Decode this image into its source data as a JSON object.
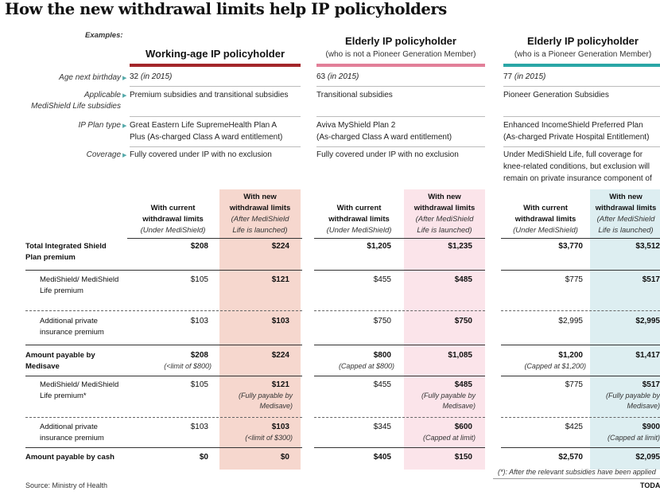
{
  "title": "How the new withdrawal limits help IP policyholders",
  "examples_label": "Examples:",
  "colors": {
    "group1": "#a3262a",
    "group2": "#e27f98",
    "group3": "#2aa6a6",
    "shade1": "#f6d7ce",
    "shade2": "#fbe4ea",
    "shade3": "#ddeef1"
  },
  "groups": [
    {
      "title": "Working-age IP policyholder",
      "subtitle": "",
      "age": "32",
      "age_note": "(in 2015)",
      "subsidies": "Premium subsidies and transitional subsidies",
      "plan": [
        "Great Eastern Life SupremeHealth Plan A",
        "Plus (As-charged Class A ward entitlement)"
      ],
      "coverage": [
        "Fully covered under IP with no exclusion"
      ]
    },
    {
      "title": "Elderly IP policyholder",
      "subtitle": "(who is not a Pioneer Generation Member)",
      "age": "63",
      "age_note": "(in 2015)",
      "subsidies": "Transitional subsidies",
      "plan": [
        "Aviva MyShield Plan 2",
        "(As-charged Class A ward entitlement)"
      ],
      "coverage": [
        "Fully covered under IP with no exclusion"
      ]
    },
    {
      "title": "Elderly IP policyholder",
      "subtitle": "(who is a Pioneer Generation Member)",
      "age": "77",
      "age_note": "(in 2015)",
      "subsidies": "Pioneer Generation Subsidies",
      "plan": [
        "Enhanced IncomeShield Preferred Plan",
        "(As-charged Private Hospital Entitlement)"
      ],
      "coverage": [
        "Under MediShield Life, full coverage for",
        "knee-related conditions, but exclusion will",
        "remain on private insurance component of"
      ]
    }
  ],
  "info_labels": {
    "age": "Age next birthday",
    "subsidies": [
      "Applicable",
      "MediShield Life subsidies"
    ],
    "plan": "IP Plan type",
    "coverage": "Coverage"
  },
  "col_headers": {
    "current": {
      "l1": "With current",
      "l2": "withdrawal limits",
      "l3": "(Under MediShield)"
    },
    "new": {
      "l1": "With new",
      "l2": "withdrawal limits",
      "l3": "(After MediShield",
      "l4": "Life is launched)"
    }
  },
  "rows": [
    {
      "label": "Total Integrated Shield Plan premium",
      "bold": true,
      "cells": [
        [
          "$208",
          ""
        ],
        [
          "$224",
          ""
        ],
        [
          "$1,205",
          ""
        ],
        [
          "$1,235",
          ""
        ],
        [
          "$3,770",
          ""
        ],
        [
          "$3,512",
          ""
        ]
      ]
    },
    {
      "label": "MediShield/ MediShield Life premium",
      "bold": false,
      "cells": [
        [
          "$105",
          ""
        ],
        [
          "$121",
          ""
        ],
        [
          "$455",
          ""
        ],
        [
          "$485",
          ""
        ],
        [
          "$775",
          ""
        ],
        [
          "$517",
          ""
        ]
      ]
    },
    {
      "label": "Additional private insurance premium",
      "bold": false,
      "cells": [
        [
          "$103",
          ""
        ],
        [
          "$103",
          ""
        ],
        [
          "$750",
          ""
        ],
        [
          "$750",
          ""
        ],
        [
          "$2,995",
          ""
        ],
        [
          "$2,995",
          ""
        ]
      ]
    },
    {
      "label": "Amount payable by Medisave",
      "bold": true,
      "cells": [
        [
          "$208",
          "(<limit of $800)"
        ],
        [
          "$224",
          ""
        ],
        [
          "$800",
          "(Capped at $800)"
        ],
        [
          "$1,085",
          ""
        ],
        [
          "$1,200",
          "(Capped at $1,200)"
        ],
        [
          "$1,417",
          ""
        ]
      ]
    },
    {
      "label": "MediShield/ MediShield Life premium*",
      "bold": false,
      "cells": [
        [
          "$105",
          ""
        ],
        [
          "$121",
          "(Fully payable by Medisave)"
        ],
        [
          "$455",
          ""
        ],
        [
          "$485",
          "(Fully payable by Medisave)"
        ],
        [
          "$775",
          ""
        ],
        [
          "$517",
          "(Fully payable by Medisave)"
        ]
      ]
    },
    {
      "label": "Additional private insurance premium",
      "bold": false,
      "cells": [
        [
          "$103",
          ""
        ],
        [
          "$103",
          "(<limit of $300)"
        ],
        [
          "$345",
          ""
        ],
        [
          "$600",
          "(Capped at limit)"
        ],
        [
          "$425",
          ""
        ],
        [
          "$900",
          "(Capped at limit)"
        ]
      ]
    },
    {
      "label": "Amount payable by cash",
      "bold": true,
      "cells": [
        [
          "$0",
          ""
        ],
        [
          "$0",
          ""
        ],
        [
          "$405",
          ""
        ],
        [
          "$150",
          ""
        ],
        [
          "$2,570",
          ""
        ],
        [
          "$2,095",
          ""
        ]
      ]
    }
  ],
  "footnote": "(*): After the relevant subsidies have been applied",
  "source": "Source: Ministry of Health",
  "brand": "TODAY"
}
